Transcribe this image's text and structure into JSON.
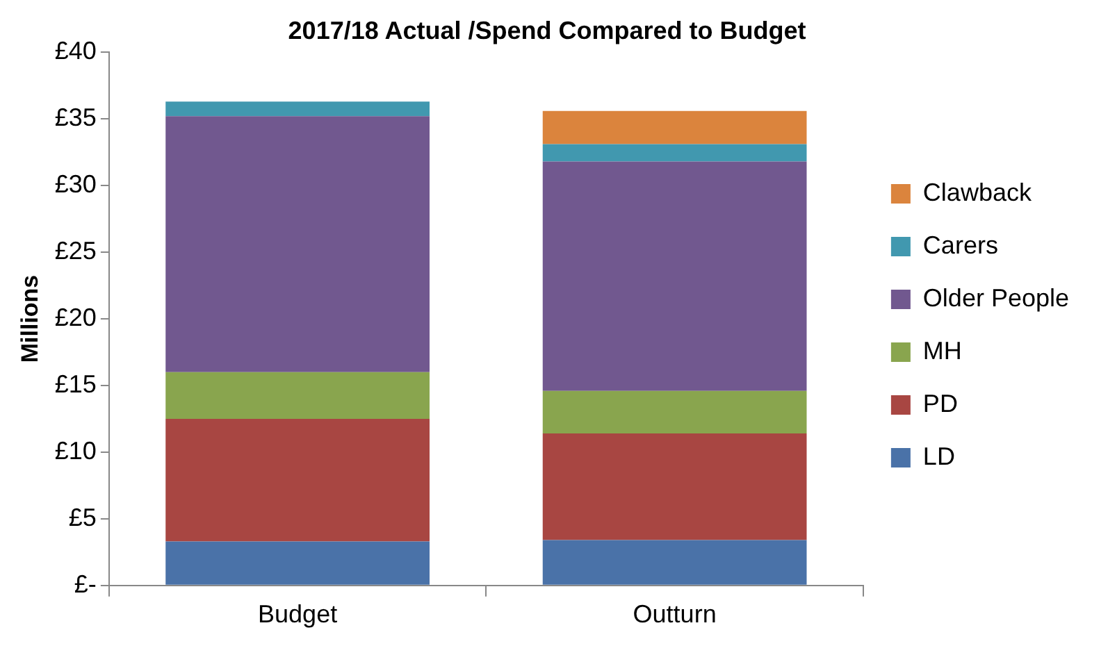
{
  "chart_data": {
    "type": "bar",
    "title": "2017/18 Actual /Spend Compared to Budget",
    "ylabel": "Millions",
    "categories": [
      "Budget",
      "Outturn"
    ],
    "stacked": true,
    "legend": "right",
    "grid": false,
    "ylim": [
      0,
      40
    ],
    "yticks": [
      {
        "value": 0,
        "label": "£-"
      },
      {
        "value": 5,
        "label": "£5"
      },
      {
        "value": 10,
        "label": "£10"
      },
      {
        "value": 15,
        "label": "£15"
      },
      {
        "value": 20,
        "label": "£20"
      },
      {
        "value": 25,
        "label": "£25"
      },
      {
        "value": 30,
        "label": "£30"
      },
      {
        "value": 35,
        "label": "£35"
      },
      {
        "value": 40,
        "label": "£40"
      }
    ],
    "series": [
      {
        "name": "LD",
        "color": "#4a72a8",
        "values": [
          3.3,
          3.4
        ]
      },
      {
        "name": "PD",
        "color": "#a84642",
        "values": [
          9.2,
          8.0
        ]
      },
      {
        "name": "MH",
        "color": "#89a54e",
        "values": [
          3.5,
          3.2
        ]
      },
      {
        "name": "Older People",
        "color": "#71588f",
        "values": [
          19.2,
          17.2
        ]
      },
      {
        "name": "Carers",
        "color": "#4198af",
        "values": [
          1.1,
          1.3
        ]
      },
      {
        "name": "Clawback",
        "color": "#db843d",
        "values": [
          0,
          2.5
        ]
      }
    ]
  }
}
